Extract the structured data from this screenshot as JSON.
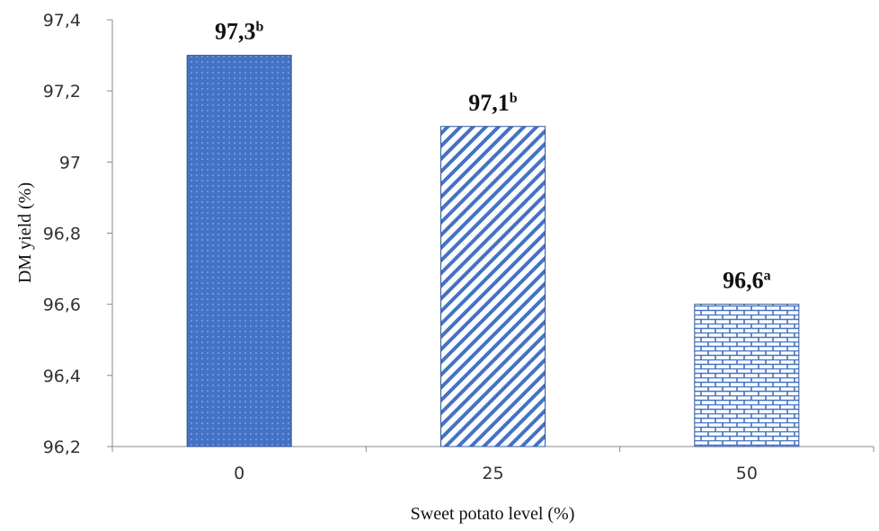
{
  "chart_data": {
    "type": "bar",
    "title": "",
    "xlabel": "Sweet potato level (%)",
    "ylabel": "DM yield (%)",
    "categories": [
      "0",
      "25",
      "50"
    ],
    "values": [
      97.3,
      97.1,
      96.6
    ],
    "data_labels": [
      {
        "value": "97,3",
        "letter": "b"
      },
      {
        "value": "97,1",
        "letter": "b"
      },
      {
        "value": "96,6",
        "letter": "a"
      }
    ],
    "ylim": [
      96.2,
      97.4
    ],
    "yticks": [
      {
        "value": 96.2,
        "label": "96,2"
      },
      {
        "value": 96.4,
        "label": "96,4"
      },
      {
        "value": 96.6,
        "label": "96,6"
      },
      {
        "value": 96.8,
        "label": "96,8"
      },
      {
        "value": 97.0,
        "label": "97"
      },
      {
        "value": 97.2,
        "label": "97,2"
      },
      {
        "value": 97.4,
        "label": "97,4"
      }
    ],
    "grid": false,
    "legend": "none",
    "bar_patterns": [
      "dotted",
      "diagonal-stripes",
      "brick"
    ],
    "colors": {
      "bar_fill": "#4472c4",
      "bar_stroke": "#2f5597",
      "pattern_bg": "#ffffff",
      "axis": "#888888"
    }
  }
}
